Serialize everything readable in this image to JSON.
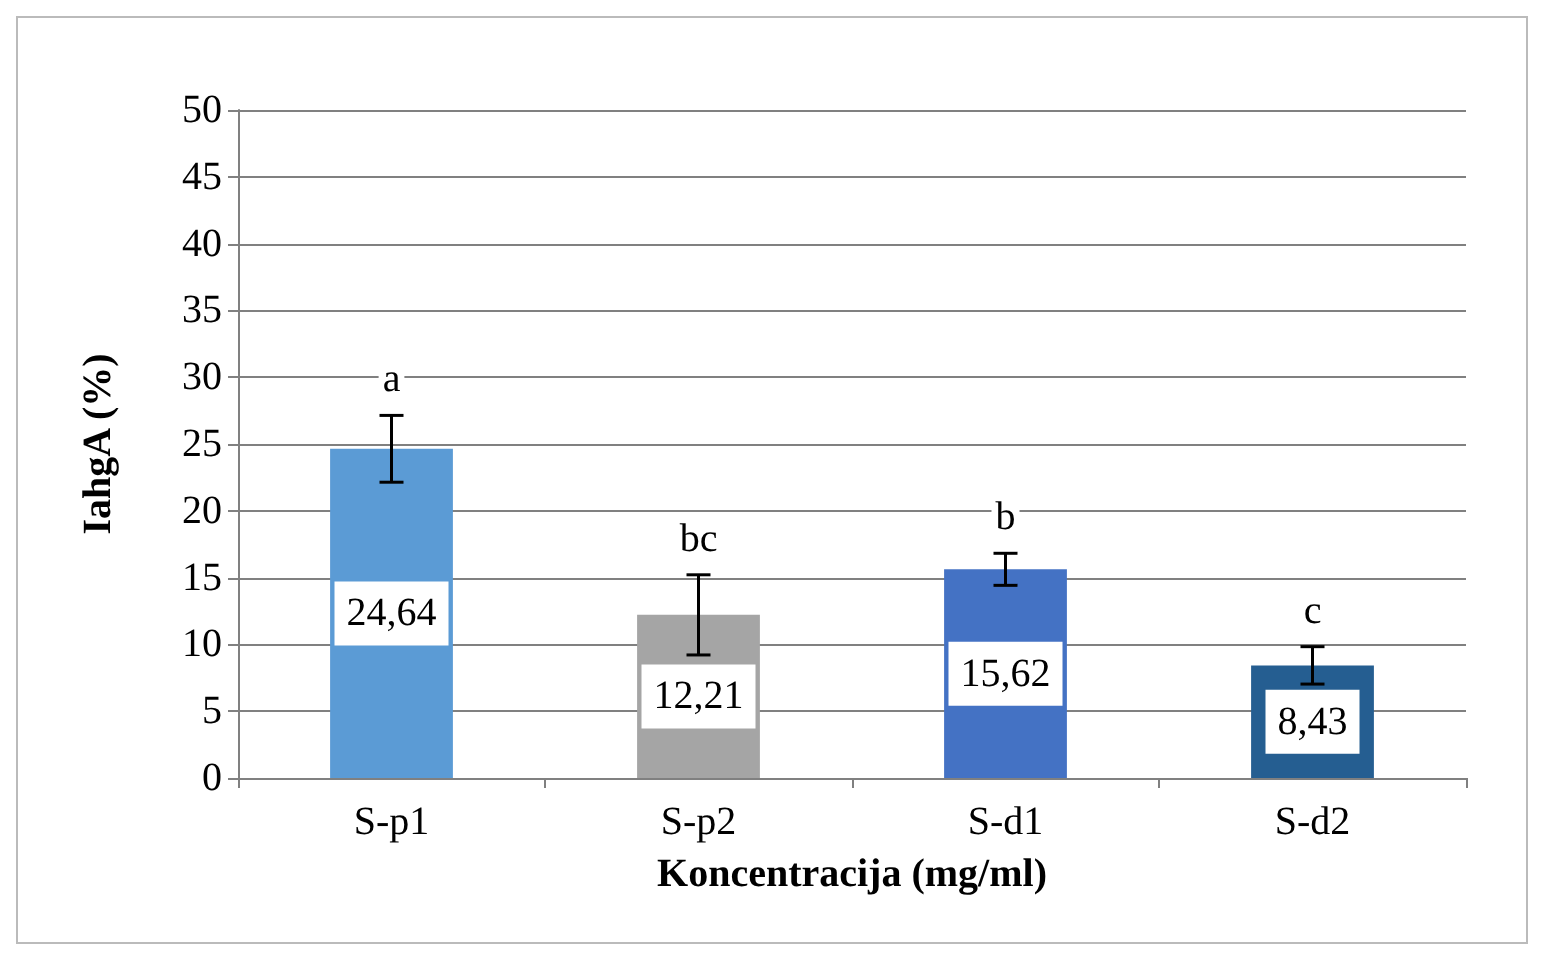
{
  "chart_data": {
    "type": "bar",
    "xlabel": "Koncentracija (mg/ml)",
    "ylabel": "IahgA (%)",
    "categories": [
      "S-p1",
      "S-p2",
      "S-d1",
      "S-d2"
    ],
    "values": [
      24.64,
      12.21,
      15.62,
      8.43
    ],
    "colors": [
      "#5b9bd5",
      "#a5a5a5",
      "#4472c4",
      "#255e91"
    ],
    "errors": [
      2.5,
      3.0,
      1.2,
      1.4
    ],
    "value_labels": [
      "24,64",
      "12,21",
      "15,62",
      "8,43"
    ],
    "annotations": [
      "a",
      "bc",
      "b",
      "c"
    ],
    "ylim": [
      0,
      50
    ],
    "yticks": [
      0,
      5,
      10,
      15,
      20,
      25,
      30,
      35,
      40,
      45,
      50
    ],
    "grid": "y"
  }
}
